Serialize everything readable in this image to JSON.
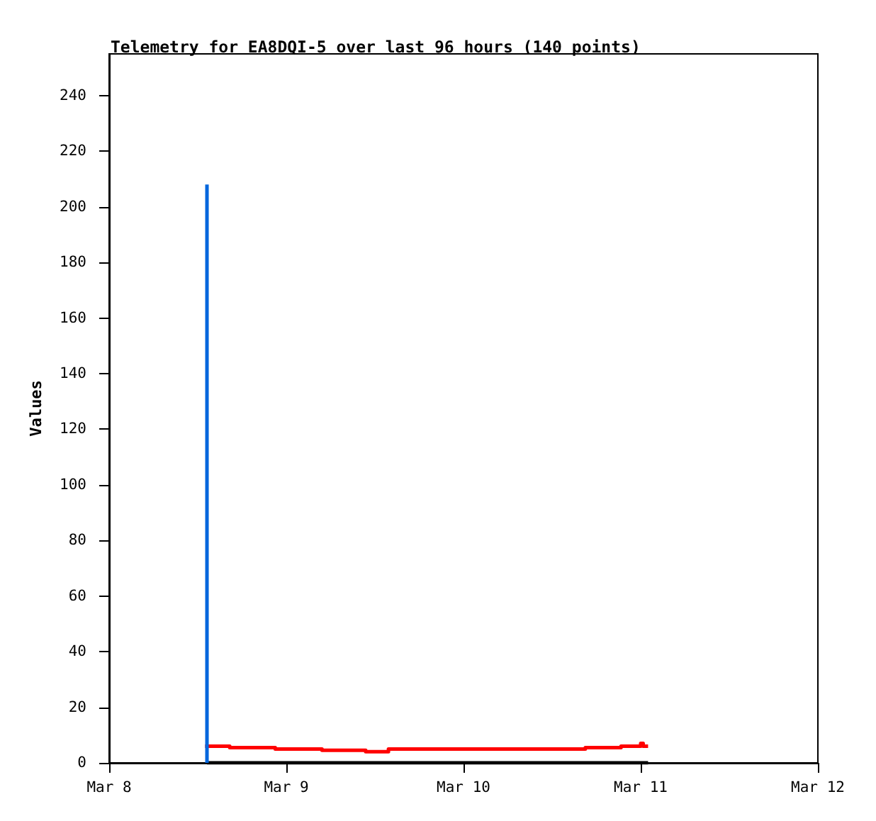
{
  "chart_data": {
    "type": "line",
    "title": "Telemetry for EA8DQI-5 over last 96 hours (140 points)",
    "ylabel": "Values",
    "xlim": [
      "--03-08",
      "--03-12"
    ],
    "xticks": [
      {
        "value": "--03-08",
        "label": "Mar 8"
      },
      {
        "value": "--03-09",
        "label": "Mar 9"
      },
      {
        "value": "--03-10",
        "label": "Mar 10"
      },
      {
        "value": "--03-11",
        "label": "Mar 11"
      },
      {
        "value": "--03-12",
        "label": "Mar 12"
      }
    ],
    "ylim": [
      0,
      255
    ],
    "yticks": [
      0,
      20,
      40,
      60,
      80,
      100,
      120,
      140,
      160,
      180,
      200,
      220,
      240
    ],
    "grid": false,
    "marker": "none",
    "line_style": "solid",
    "series": [
      {
        "color": "#000000",
        "x": [
          "--03-08T13:15",
          "--03-11T01:00"
        ],
        "values": [
          0,
          0
        ]
      },
      {
        "type": "step",
        "color": "#ff0000",
        "x": [
          "--03-08T13:00",
          "--03-08T16:20",
          "--03-08T22:30",
          "--03-09T04:50",
          "--03-09T10:45",
          "--03-09T13:50",
          "--03-10T16:30",
          "--03-10T21:20",
          "--03-11T00:00",
          "--03-11T00:20",
          "--03-11T01:00"
        ],
        "values": [
          6,
          5.5,
          5,
          4.5,
          4,
          5,
          5.5,
          6,
          7,
          6,
          6
        ]
      },
      {
        "color": "#0066dd",
        "x": [
          "--03-08T13:15",
          "--03-08T13:15",
          "--03-08T13:15"
        ],
        "values": [
          208,
          48,
          0
        ]
      }
    ]
  }
}
